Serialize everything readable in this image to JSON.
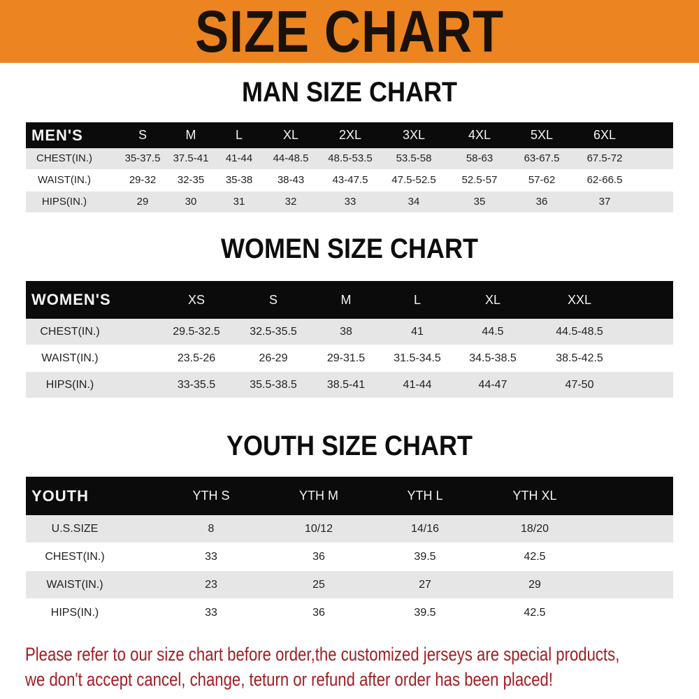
{
  "banner": {
    "title": "SIZE CHART",
    "background_color": "#ec8420"
  },
  "men": {
    "title": "MAN SIZE CHART",
    "header": [
      "MEN'S",
      "S",
      "M",
      "L",
      "XL",
      "2XL",
      "3XL",
      "4XL",
      "5XL",
      "6XL"
    ],
    "rows": [
      [
        "CHEST(IN.)",
        "35-37.5",
        "37.5-41",
        "41-44",
        "44-48.5",
        "48.5-53.5",
        "53.5-58",
        "58-63",
        "63-67.5",
        "67.5-72"
      ],
      [
        "WAIST(IN.)",
        "29-32",
        "32-35",
        "35-38",
        "38-43",
        "43-47.5",
        "47.5-52.5",
        "52.5-57",
        "57-62",
        "62-66.5"
      ],
      [
        "HIPS(IN.)",
        "29",
        "30",
        "31",
        "32",
        "33",
        "34",
        "35",
        "36",
        "37"
      ]
    ]
  },
  "women": {
    "title": "WOMEN SIZE CHART",
    "header": [
      "WOMEN'S",
      "XS",
      "S",
      "M",
      "L",
      "XL",
      "XXL"
    ],
    "rows": [
      [
        "CHEST(IN.)",
        "29.5-32.5",
        "32.5-35.5",
        "38",
        "41",
        "44.5",
        "44.5-48.5"
      ],
      [
        "WAIST(IN.)",
        "23.5-26",
        "26-29",
        "29-31.5",
        "31.5-34.5",
        "34.5-38.5",
        "38.5-42.5"
      ],
      [
        "HIPS(IN.)",
        "33-35.5",
        "35.5-38.5",
        "38.5-41",
        "41-44",
        "44-47",
        "47-50"
      ]
    ]
  },
  "youth": {
    "title": "YOUTH SIZE CHART",
    "header": [
      "YOUTH",
      "YTH S",
      "YTH M",
      "YTH L",
      "YTH XL"
    ],
    "rows": [
      [
        "U.S.SIZE",
        "8",
        "10/12",
        "14/16",
        "18/20"
      ],
      [
        "CHEST(IN.)",
        "33",
        "36",
        "39.5",
        "42.5"
      ],
      [
        "WAIST(IN.)",
        "23",
        "25",
        "27",
        "29"
      ],
      [
        "HIPS(IN.)",
        "33",
        "36",
        "39.5",
        "42.5"
      ]
    ]
  },
  "note": {
    "line1": "Please refer to our size chart before order,the customized jerseys are special products,",
    "line2": "we don't accept cancel, change, teturn or refund after order has been placed!",
    "color": "#a21d22"
  }
}
